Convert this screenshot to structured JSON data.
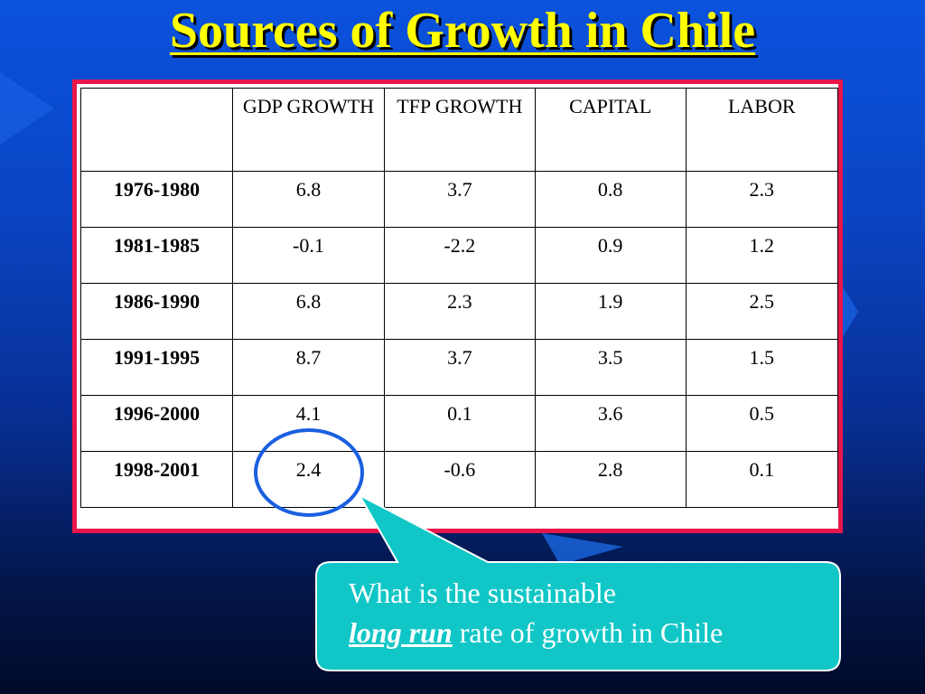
{
  "slide": {
    "title": "Sources of Growth in Chile",
    "colors": {
      "title": "#ffff00",
      "frame": "#e8164a",
      "callout": "#11c6c6",
      "circle": "#1a5fe0"
    }
  },
  "table": {
    "headers": [
      "",
      "GDP GROWTH",
      "TFP GROWTH",
      "CAPITAL",
      "LABOR"
    ],
    "rows": [
      {
        "period": "1976-1980",
        "gdp": "6.8",
        "tfp": "3.7",
        "capital": "0.8",
        "labor": "2.3"
      },
      {
        "period": "1981-1985",
        "gdp": "-0.1",
        "tfp": "-2.2",
        "capital": "0.9",
        "labor": "1.2"
      },
      {
        "period": "1986-1990",
        "gdp": "6.8",
        "tfp": "2.3",
        "capital": "1.9",
        "labor": "2.5"
      },
      {
        "period": "1991-1995",
        "gdp": "8.7",
        "tfp": "3.7",
        "capital": "3.5",
        "labor": "1.5"
      },
      {
        "period": "1996-2000",
        "gdp": "4.1",
        "tfp": "0.1",
        "capital": "3.6",
        "labor": "0.5"
      },
      {
        "period": "1998-2001",
        "gdp": "2.4",
        "tfp": "-0.6",
        "capital": "2.8",
        "labor": "0.1"
      }
    ]
  },
  "callout": {
    "line1": "What is the sustainable",
    "emphasis": "long run",
    "line2_rest": " rate of growth in Chile"
  }
}
